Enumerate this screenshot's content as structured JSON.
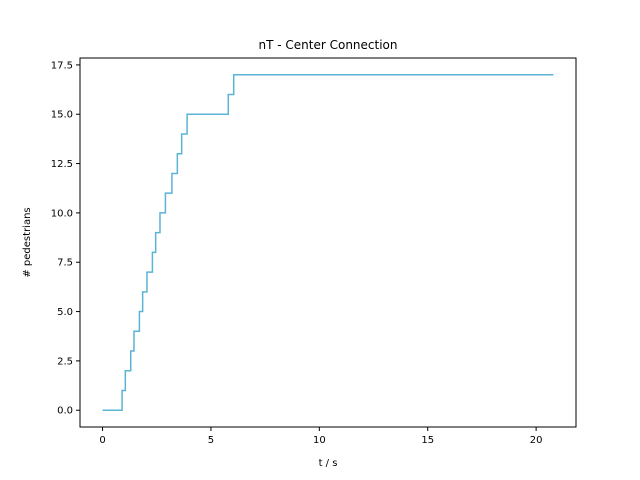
{
  "chart_data": {
    "type": "line",
    "title": "nT - Center Connection",
    "xlabel": "t / s",
    "ylabel": "# pedestrians",
    "xlim": [
      -1.04,
      21.84
    ],
    "ylim": [
      -0.85,
      17.85
    ],
    "xticks": [
      0,
      5,
      10,
      15,
      20
    ],
    "xtick_labels": [
      "0",
      "5",
      "10",
      "15",
      "20"
    ],
    "yticks": [
      0,
      2.5,
      5,
      7.5,
      10,
      12.5,
      15,
      17.5
    ],
    "ytick_labels": [
      "0.0",
      "2.5",
      "5.0",
      "7.5",
      "10.0",
      "12.5",
      "15.0",
      "17.5"
    ],
    "grid": false,
    "step": true,
    "series": [
      {
        "name": "",
        "color": "#5ab4d6",
        "x": [
          0,
          0.8,
          0.9,
          1.05,
          1.3,
          1.45,
          1.7,
          1.85,
          2.05,
          2.3,
          2.45,
          2.65,
          2.9,
          3.2,
          3.45,
          3.65,
          3.9,
          4.1,
          5.8,
          6.05,
          20.8
        ],
        "y": [
          0,
          0,
          1,
          2,
          3,
          4,
          5,
          6,
          7,
          8,
          9,
          10,
          11,
          12,
          13,
          14,
          15,
          15,
          16,
          17,
          17
        ]
      }
    ]
  }
}
